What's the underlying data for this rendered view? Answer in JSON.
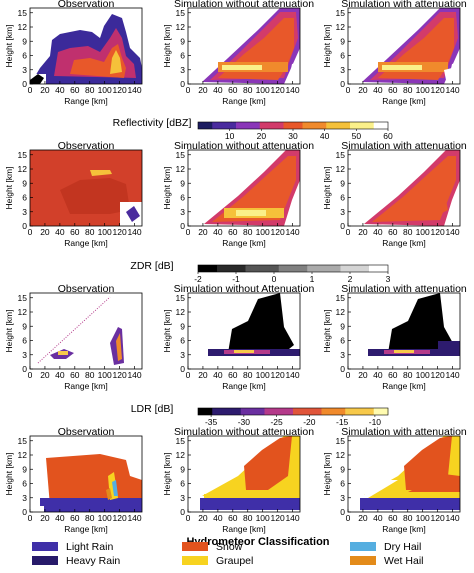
{
  "chart_data": [
    {
      "type": "heatmap",
      "quantity": "Reflectivity",
      "panels": [
        "Observation",
        "Simulation without attenuation",
        "Simulation with attenuation"
      ],
      "xlabel": "Range [km]",
      "ylabel": "Height [km]",
      "xticks": [
        "0",
        "20",
        "40",
        "60",
        "80",
        "100",
        "120",
        "140"
      ],
      "yticks": [
        "0",
        "3",
        "6",
        "9",
        "12",
        "15"
      ],
      "xlim": [
        0,
        150
      ],
      "ylim": [
        0,
        16
      ],
      "colorbar": {
        "label": "Reflectivity [dBZ]",
        "ticks": [
          "10",
          "20",
          "30",
          "40",
          "50",
          "60"
        ],
        "range": [
          0,
          60
        ]
      }
    },
    {
      "type": "heatmap",
      "quantity": "ZDR",
      "panels": [
        "Observation",
        "Simulation without attenuation",
        "Simulation with attenuation"
      ],
      "xlabel": "Range [km]",
      "ylabel": "Height [km]",
      "xticks": [
        "0",
        "20",
        "40",
        "60",
        "80",
        "100",
        "120",
        "140"
      ],
      "yticks": [
        "0",
        "3",
        "6",
        "9",
        "12",
        "15"
      ],
      "xlim": [
        0,
        150
      ],
      "ylim": [
        0,
        16
      ],
      "colorbar": {
        "label": "ZDR [dB]",
        "ticks": [
          "-2",
          "-1",
          "0",
          "1",
          "2",
          "3"
        ],
        "range": [
          -2,
          3
        ]
      }
    },
    {
      "type": "heatmap",
      "quantity": "LDR",
      "panels": [
        "Observation",
        "Simulation without Attenuation",
        "Simulation with attenuation"
      ],
      "xlabel": "Range [km]",
      "ylabel": "Height [km]",
      "xticks": [
        "0",
        "20",
        "40",
        "60",
        "80",
        "100",
        "120",
        "140"
      ],
      "yticks": [
        "0",
        "3",
        "6",
        "9",
        "12",
        "15"
      ],
      "xlim": [
        0,
        150
      ],
      "ylim": [
        0,
        16
      ],
      "colorbar": {
        "label": "LDR [dB]",
        "ticks": [
          "-35",
          "-30",
          "-25",
          "-20",
          "-15",
          "-10"
        ],
        "range": [
          -37,
          -8
        ]
      }
    },
    {
      "type": "heatmap",
      "quantity": "Hydrometeor Classification",
      "panels": [
        "Observation",
        "Simulation without attenuation",
        "Simulation with attenuation"
      ],
      "xlabel": "Range [km]",
      "ylabel": "Height [km]",
      "xticks": [
        "0",
        "20",
        "40",
        "60",
        "80",
        "100",
        "120",
        "140"
      ],
      "yticks": [
        "0",
        "3",
        "6",
        "9",
        "12",
        "15"
      ],
      "xlim": [
        0,
        150
      ],
      "ylim": [
        0,
        16
      ]
    }
  ],
  "legend": {
    "title": "Hydrometeor Classification",
    "items": [
      {
        "label": "Light Rain",
        "color": "#3f2fa8"
      },
      {
        "label": "Heavy Rain",
        "color": "#271a6a"
      },
      {
        "label": "Snow",
        "color": "#e2531e"
      },
      {
        "label": "Graupel",
        "color": "#f7d320"
      },
      {
        "label": "Dry Hail",
        "color": "#55aee0"
      },
      {
        "label": "Wet Hail",
        "color": "#e38b1a"
      }
    ]
  },
  "colors": {
    "reflectivity_scale": [
      "#1c1c60",
      "#4a2b9e",
      "#8a36b8",
      "#d23b6a",
      "#e8582a",
      "#f08a2c",
      "#f5c13a",
      "#faf08a",
      "#ffffff"
    ],
    "zdr_scale": [
      "#000000",
      "#2a2a2a",
      "#555555",
      "#808080",
      "#aaaaaa",
      "#d4d4d4",
      "#ffffff"
    ],
    "ldr_scale": [
      "#000000",
      "#2d1b6e",
      "#6a2fa0",
      "#b43a8a",
      "#e0553a",
      "#f08a2c",
      "#f7c94a",
      "#fffbb0"
    ]
  }
}
